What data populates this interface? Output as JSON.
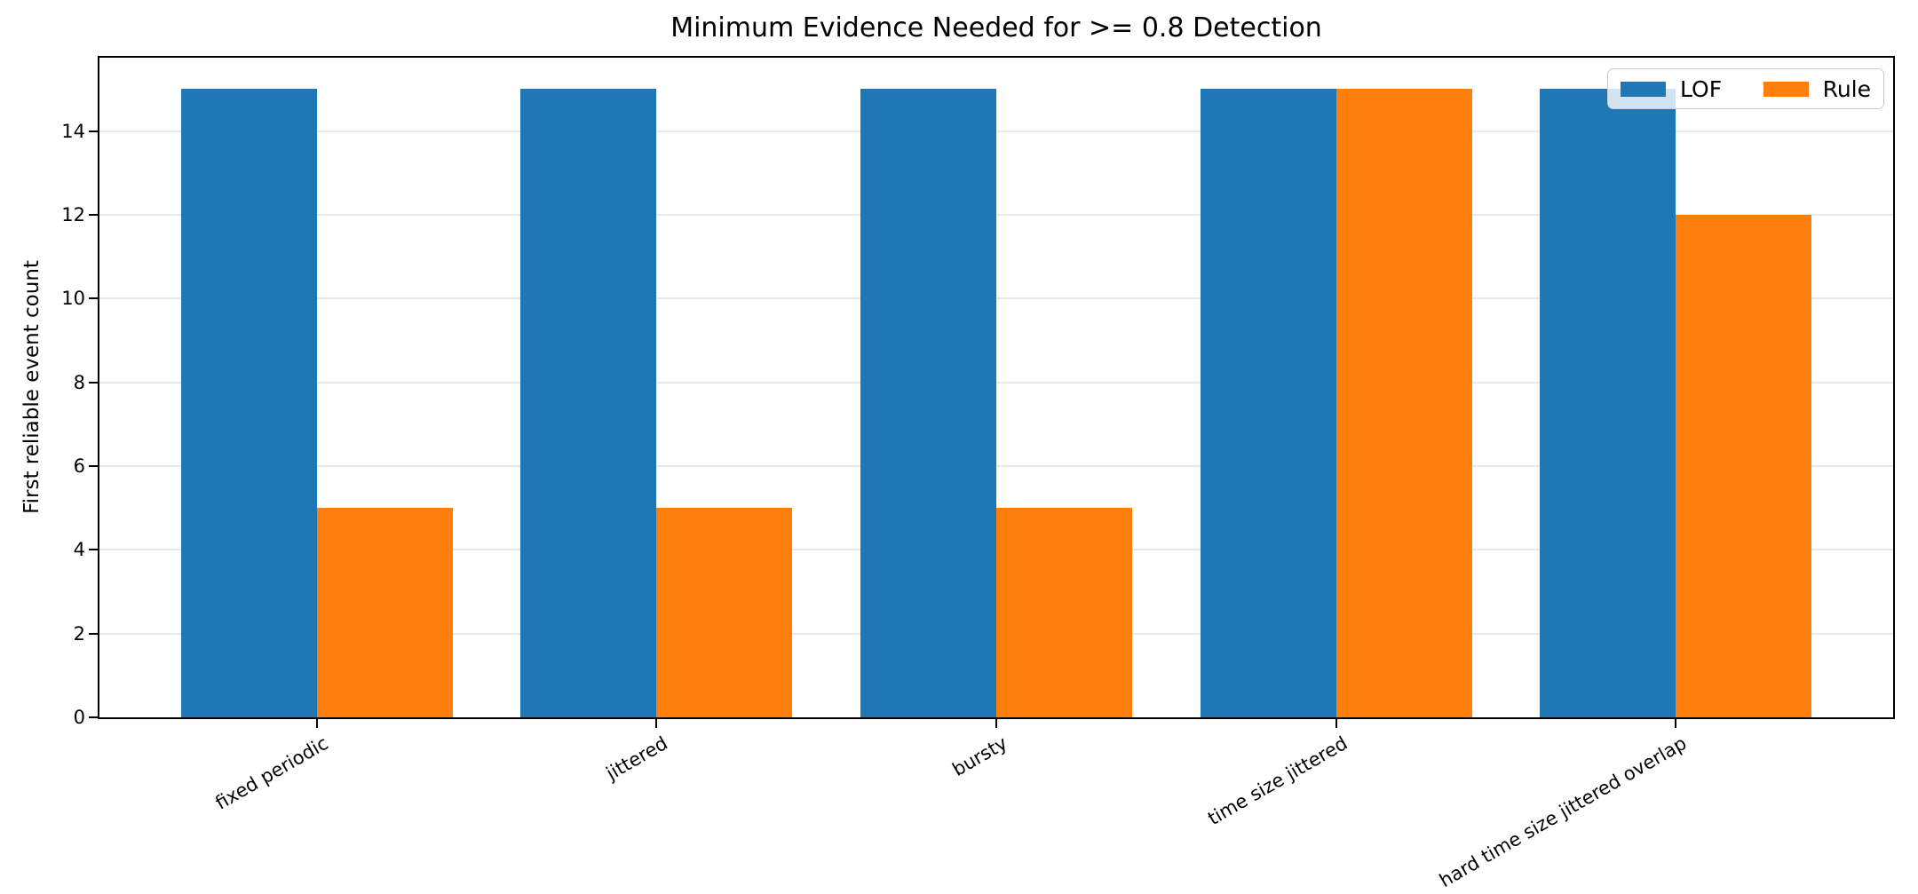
{
  "chart_data": {
    "type": "bar",
    "title": "Minimum Evidence Needed for >= 0.8 Detection",
    "xlabel": "",
    "ylabel": "First reliable event count",
    "categories": [
      "fixed periodic",
      "jittered",
      "bursty",
      "time size jittered",
      "hard time size jittered overlap"
    ],
    "series": [
      {
        "name": "LOF",
        "color": "#1f77b4",
        "values": [
          15,
          15,
          15,
          15,
          15
        ]
      },
      {
        "name": "Rule",
        "color": "#ff7f0e",
        "values": [
          5,
          5,
          5,
          15,
          12
        ]
      }
    ],
    "ylim": [
      0,
      15.75
    ],
    "yticks": [
      0,
      2,
      4,
      6,
      8,
      10,
      12,
      14
    ],
    "xlim": [
      -0.64,
      4.64
    ],
    "bar_width_frac": 0.4,
    "x_tick_rotation_deg": 30,
    "grid": true,
    "grid_color": "#e8e8e8",
    "legend_position": "upper right"
  }
}
